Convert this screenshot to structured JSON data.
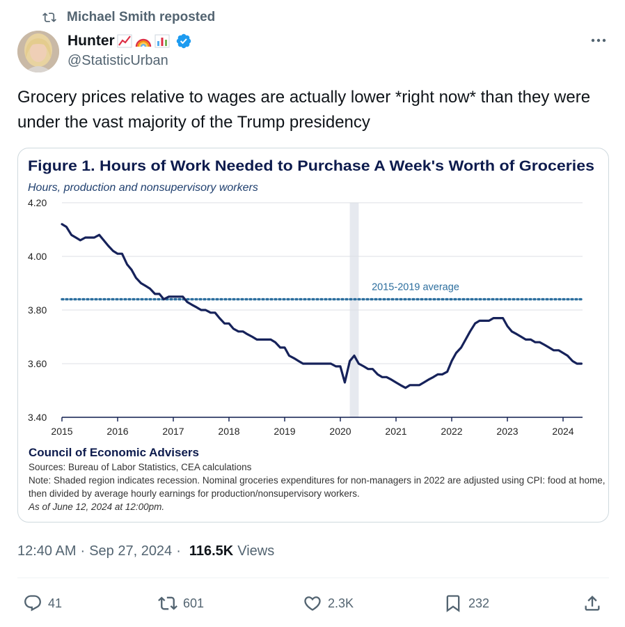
{
  "repost": {
    "text": "Michael Smith reposted"
  },
  "author": {
    "name": "Hunter",
    "handle": "@StatisticUrban",
    "badges": [
      "chart-increasing-emoji",
      "rainbow-emoji",
      "bar-chart-emoji"
    ]
  },
  "tweet": {
    "text": "Grocery prices relative to wages are actually lower *right now* than they were under the vast majority of the Trump presidency"
  },
  "meta": {
    "time": "12:40 AM",
    "date": "Sep 27, 2024",
    "views_count": "116.5K",
    "views_label": "Views"
  },
  "actions": {
    "replies": "41",
    "reposts": "601",
    "likes": "2.3K",
    "bookmarks": "232"
  },
  "chart_footer": {
    "org": "Council of Economic Advisers",
    "sources": "Sources: Bureau of Labor Statistics, CEA calculations",
    "note": "Note: Shaded region indicates recession. Nominal groceries expenditures for non-managers in 2022 are adjusted using CPI: food at home, then divided by average hourly earnings for production/nonsupervisory workers.",
    "as_of": "As of June 12, 2024 at 12:00pm."
  },
  "colors": {
    "navy": "#0d1b4d",
    "line": "#16225a",
    "avg": "#2c6e9e",
    "recession": "#e6e9ef",
    "link_blue": "#1d9bf0"
  },
  "chart_data": {
    "type": "line",
    "title": "Figure 1. Hours of Work Needed to Purchase A Week's Worth of Groceries",
    "subtitle": "Hours, production and nonsupervisory workers",
    "x_ticks": [
      "2015",
      "2016",
      "2017",
      "2018",
      "2019",
      "2020",
      "2021",
      "2022",
      "2023",
      "2024"
    ],
    "y_ticks": [
      "4.20",
      "4.00",
      "3.80",
      "3.60",
      "3.40"
    ],
    "ylim": [
      3.4,
      4.2
    ],
    "xlim": [
      2015.0,
      2024.35
    ],
    "recession": [
      2020.17,
      2020.33
    ],
    "reference_line": {
      "label": "2015-2019 average",
      "value": 3.84
    },
    "series": [
      {
        "x": [
          2015.0,
          2015.08,
          2015.17,
          2015.25,
          2015.33,
          2015.42,
          2015.5,
          2015.58,
          2015.67,
          2015.75,
          2015.83,
          2015.92,
          2016.0,
          2016.08,
          2016.17,
          2016.25,
          2016.33,
          2016.42,
          2016.5,
          2016.58,
          2016.67,
          2016.75,
          2016.83,
          2016.92,
          2017.0,
          2017.08,
          2017.17,
          2017.25,
          2017.33,
          2017.42,
          2017.5,
          2017.58,
          2017.67,
          2017.75,
          2017.83,
          2017.92,
          2018.0,
          2018.08,
          2018.17,
          2018.25,
          2018.33,
          2018.42,
          2018.5,
          2018.58,
          2018.67,
          2018.75,
          2018.83,
          2018.92,
          2019.0,
          2019.08,
          2019.17,
          2019.25,
          2019.33,
          2019.42,
          2019.5,
          2019.58,
          2019.67,
          2019.75,
          2019.83,
          2019.92,
          2020.0,
          2020.08,
          2020.17,
          2020.25,
          2020.33,
          2020.42,
          2020.5,
          2020.58,
          2020.67,
          2020.75,
          2020.83,
          2020.92,
          2021.0,
          2021.08,
          2021.17,
          2021.25,
          2021.33,
          2021.42,
          2021.5,
          2021.58,
          2021.67,
          2021.75,
          2021.83,
          2021.92,
          2022.0,
          2022.08,
          2022.17,
          2022.25,
          2022.33,
          2022.42,
          2022.5,
          2022.58,
          2022.67,
          2022.75,
          2022.83,
          2022.92,
          2023.0,
          2023.08,
          2023.17,
          2023.25,
          2023.33,
          2023.42,
          2023.5,
          2023.58,
          2023.67,
          2023.75,
          2023.83,
          2023.92,
          2024.0,
          2024.08,
          2024.17,
          2024.25,
          2024.33
        ],
        "y": [
          4.12,
          4.11,
          4.08,
          4.07,
          4.06,
          4.07,
          4.07,
          4.07,
          4.08,
          4.06,
          4.04,
          4.02,
          4.01,
          4.01,
          3.97,
          3.95,
          3.92,
          3.9,
          3.89,
          3.88,
          3.86,
          3.86,
          3.84,
          3.85,
          3.85,
          3.85,
          3.85,
          3.83,
          3.82,
          3.81,
          3.8,
          3.8,
          3.79,
          3.79,
          3.77,
          3.75,
          3.75,
          3.73,
          3.72,
          3.72,
          3.71,
          3.7,
          3.69,
          3.69,
          3.69,
          3.69,
          3.68,
          3.66,
          3.66,
          3.63,
          3.62,
          3.61,
          3.6,
          3.6,
          3.6,
          3.6,
          3.6,
          3.6,
          3.6,
          3.59,
          3.59,
          3.53,
          3.61,
          3.63,
          3.6,
          3.59,
          3.58,
          3.58,
          3.56,
          3.55,
          3.55,
          3.54,
          3.53,
          3.52,
          3.51,
          3.52,
          3.52,
          3.52,
          3.53,
          3.54,
          3.55,
          3.56,
          3.56,
          3.57,
          3.61,
          3.64,
          3.66,
          3.69,
          3.72,
          3.75,
          3.76,
          3.76,
          3.76,
          3.77,
          3.77,
          3.77,
          3.74,
          3.72,
          3.71,
          3.7,
          3.69,
          3.69,
          3.68,
          3.68,
          3.67,
          3.66,
          3.65,
          3.65,
          3.64,
          3.63,
          3.61,
          3.6,
          3.6
        ]
      }
    ]
  }
}
